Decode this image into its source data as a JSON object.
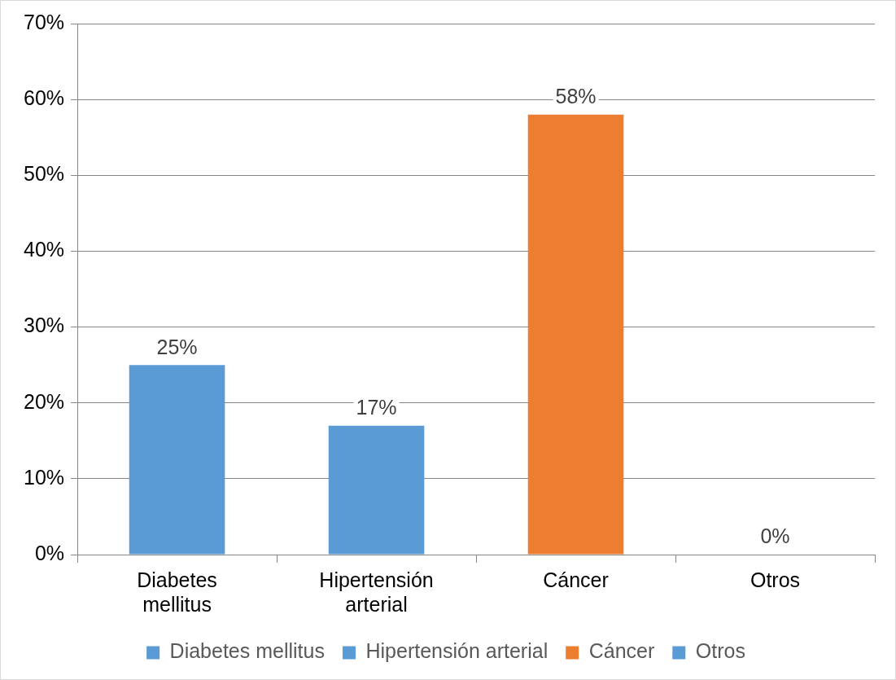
{
  "chart_data": {
    "type": "bar",
    "categories": [
      "Diabetes mellitus",
      "Hipertensión arterial",
      "Cáncer",
      "Otros"
    ],
    "series": [
      {
        "name": "Diabetes mellitus",
        "color": "#5b9bd5",
        "values": [
          25,
          null,
          null,
          null
        ],
        "value_labels": [
          "25%",
          null,
          null,
          null
        ]
      },
      {
        "name": "Hipertensión arterial",
        "color": "#5b9bd5",
        "values": [
          null,
          17,
          null,
          null
        ],
        "value_labels": [
          null,
          "17%",
          null,
          null
        ]
      },
      {
        "name": "Cáncer",
        "color": "#ed7d31",
        "values": [
          null,
          null,
          58,
          null
        ],
        "value_labels": [
          null,
          null,
          "58%",
          null
        ]
      },
      {
        "name": "Otros",
        "color": "#5b9bd5",
        "values": [
          null,
          null,
          null,
          0
        ],
        "value_labels": [
          null,
          null,
          null,
          "0%"
        ]
      }
    ],
    "ylim": [
      0,
      70
    ],
    "yticks": [
      {
        "value": 0,
        "label": "0%"
      },
      {
        "value": 10,
        "label": "10%"
      },
      {
        "value": 20,
        "label": "20%"
      },
      {
        "value": 30,
        "label": "30%"
      },
      {
        "value": 40,
        "label": "40%"
      },
      {
        "value": 50,
        "label": "50%"
      },
      {
        "value": 60,
        "label": "60%"
      },
      {
        "value": 70,
        "label": "70%"
      }
    ],
    "grid": "y",
    "legend": "bottom"
  }
}
